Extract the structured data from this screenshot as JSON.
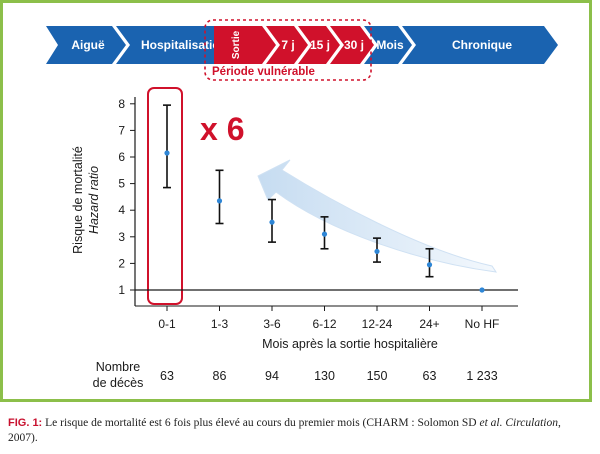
{
  "timeline": {
    "stages": [
      "Aiguë",
      "Hospitalisation",
      "Sortie",
      "7 j",
      "15 j",
      "30 j",
      "Mois",
      "Chronique"
    ],
    "vulnerable_label": "Période vulnérable"
  },
  "multiplier_label": "x 6",
  "deaths": {
    "label_line1": "Nombre",
    "label_line2": "de décès",
    "values": [
      "63",
      "86",
      "94",
      "130",
      "150",
      "63",
      "1 233"
    ]
  },
  "caption": {
    "fig_label": "FIG. 1:",
    "text": "Le risque de mortalité est 6 fois plus élevé au cours du premier mois (CHARM : Solomon SD",
    "et_al": "et al.",
    "journal": "Circulation",
    "year_text": ", 2007)."
  },
  "colors": {
    "blue": "#1a63b0",
    "red": "#d0112b",
    "frame_green": "#8cbf4a",
    "point": "#2e86d6",
    "arrow_light": "#dbe9f7"
  },
  "chart_data": {
    "type": "scatter",
    "title": "",
    "ylabel": "Risque de mortalité",
    "ylabel_italic": "Hazard ratio",
    "xlabel": "Mois après la sortie hospitalière",
    "categories": [
      "0-1",
      "1-3",
      "3-6",
      "6-12",
      "12-24",
      "24+",
      "No HF"
    ],
    "values": [
      6.15,
      4.35,
      3.55,
      3.1,
      2.45,
      1.95,
      1.0
    ],
    "ci_low": [
      4.85,
      3.5,
      2.8,
      2.55,
      2.05,
      1.5,
      null
    ],
    "ci_high": [
      7.95,
      5.5,
      4.4,
      3.75,
      2.95,
      2.55,
      null
    ],
    "reference_line": 1,
    "ylim": [
      0.5,
      8.3
    ],
    "yticks": [
      1,
      2,
      3,
      4,
      5,
      6,
      7,
      8
    ],
    "highlight_category": "0-1",
    "grid": false,
    "legend": "none"
  }
}
